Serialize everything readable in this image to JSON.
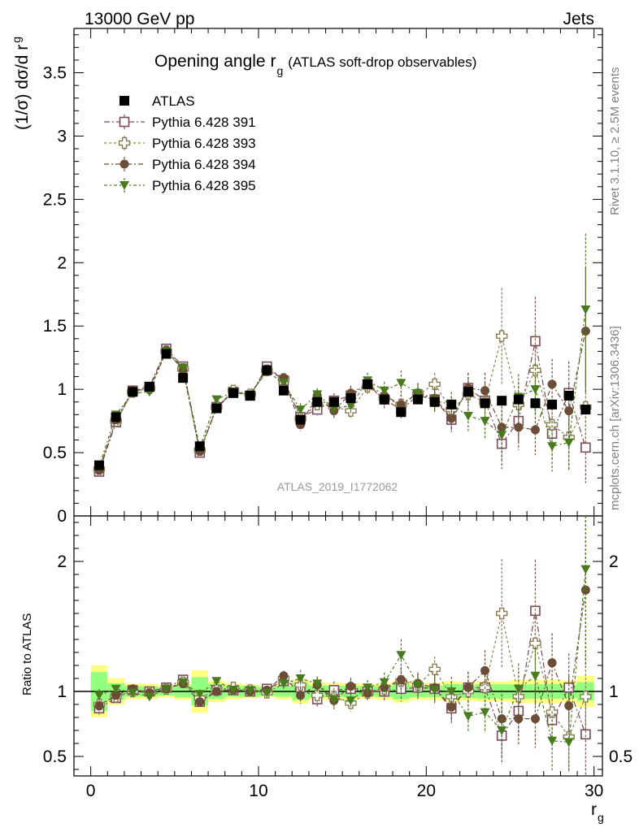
{
  "header": {
    "energy_label": "13000 GeV pp",
    "process_label": "Jets",
    "title_main": "Opening angle r",
    "title_sub": "g",
    "title_suffix": "(ATLAS soft-drop observables)",
    "ylabel_main": "(1/σ) dσ/d r",
    "ylabel_sub": "g",
    "ratio_ylabel": "Ratio to ATLAS",
    "xlabel_main": "r",
    "xlabel_sub": "g",
    "watermark": "ATLAS_2019_I1772062",
    "side_text_top": "Rivet 3.1.10, ≥ 2.5M events",
    "side_text_bottom": "mcplots.cern.ch [arXiv:1306.3436]"
  },
  "chart_data": {
    "type": "scatter",
    "xlim": [
      -1,
      30.5
    ],
    "ylim_main": [
      0,
      3.85
    ],
    "ylim_ratio": [
      0.35,
      2.35
    ],
    "x_ticks": [
      "0",
      "10",
      "20",
      "30"
    ],
    "y_ticks_main": [
      "0",
      "0.5",
      "1",
      "1.5",
      "2",
      "2.5",
      "3",
      "3.5"
    ],
    "y_ticks_ratio": [
      "0.5",
      "1",
      "2"
    ],
    "x": [
      0.5,
      1.5,
      2.5,
      3.5,
      4.5,
      5.5,
      6.5,
      7.5,
      8.5,
      9.5,
      10.5,
      11.5,
      12.5,
      13.5,
      14.5,
      15.5,
      16.5,
      17.5,
      18.5,
      19.5,
      20.5,
      21.5,
      22.5,
      23.5,
      24.5,
      25.5,
      26.5,
      27.5,
      28.5,
      29.5
    ],
    "data": {
      "name": "ATLAS",
      "color": "#000000",
      "values": [
        0.4,
        0.78,
        0.98,
        1.02,
        1.28,
        1.09,
        0.55,
        0.85,
        0.97,
        0.95,
        1.15,
        0.99,
        0.76,
        0.9,
        0.9,
        0.93,
        1.04,
        0.92,
        0.82,
        0.92,
        0.9,
        0.88,
        0.98,
        0.89,
        0.91,
        0.92,
        0.89,
        0.88,
        0.95,
        0.84
      ],
      "band_inner": [
        0.07,
        0.05,
        0.04,
        0.04,
        0.04,
        0.05,
        0.06,
        0.05,
        0.04,
        0.04,
        0.04,
        0.04,
        0.05,
        0.04,
        0.04,
        0.04,
        0.04,
        0.04,
        0.05,
        0.04,
        0.04,
        0.05,
        0.05,
        0.05,
        0.05,
        0.05,
        0.05,
        0.05,
        0.05,
        0.06
      ],
      "band_outer": [
        0.12,
        0.08,
        0.06,
        0.06,
        0.06,
        0.07,
        0.09,
        0.07,
        0.06,
        0.05,
        0.05,
        0.06,
        0.07,
        0.06,
        0.06,
        0.06,
        0.06,
        0.06,
        0.07,
        0.06,
        0.06,
        0.07,
        0.07,
        0.07,
        0.07,
        0.08,
        0.08,
        0.08,
        0.08,
        0.1
      ]
    },
    "series": [
      {
        "name": "Pythia 6.428 391",
        "color": "#7b4a5e",
        "marker": "open-square",
        "values": [
          0.35,
          0.74,
          0.99,
          1.02,
          1.32,
          1.18,
          0.5,
          0.86,
          0.98,
          0.95,
          1.18,
          1.07,
          0.78,
          0.84,
          0.91,
          0.95,
          1.04,
          0.92,
          0.84,
          0.95,
          0.92,
          0.76,
          1.01,
          0.91,
          0.57,
          0.75,
          1.38,
          0.65,
          0.97,
          0.54
        ],
        "errors": [
          0.02,
          0.02,
          0.02,
          0.02,
          0.02,
          0.02,
          0.02,
          0.02,
          0.02,
          0.02,
          0.03,
          0.04,
          0.05,
          0.05,
          0.06,
          0.06,
          0.06,
          0.07,
          0.08,
          0.08,
          0.09,
          0.1,
          0.12,
          0.14,
          0.2,
          0.18,
          0.35,
          0.2,
          0.25,
          0.28
        ],
        "ratio": [
          0.87,
          0.95,
          1.01,
          1.0,
          1.03,
          1.09,
          0.92,
          1.01,
          1.01,
          1.0,
          1.02,
          1.08,
          1.03,
          0.94,
          1.01,
          1.02,
          1.0,
          1.0,
          1.02,
          1.03,
          1.02,
          0.87,
          1.03,
          1.03,
          0.66,
          0.85,
          1.62,
          0.78,
          1.03,
          0.67
        ]
      },
      {
        "name": "Pythia 6.428 393",
        "color": "#8a7d52",
        "marker": "open-cross",
        "values": [
          0.37,
          0.75,
          0.98,
          1.01,
          1.3,
          1.16,
          0.52,
          0.86,
          0.99,
          0.96,
          1.15,
          1.08,
          0.77,
          0.88,
          0.86,
          0.83,
          1.02,
          0.93,
          0.88,
          0.96,
          1.04,
          0.84,
          0.96,
          0.9,
          1.42,
          0.88,
          1.15,
          0.72,
          0.62,
          0.86
        ],
        "errors": [
          0.02,
          0.02,
          0.02,
          0.02,
          0.02,
          0.02,
          0.02,
          0.02,
          0.02,
          0.02,
          0.03,
          0.04,
          0.05,
          0.05,
          0.06,
          0.06,
          0.06,
          0.07,
          0.08,
          0.08,
          0.09,
          0.1,
          0.12,
          0.14,
          0.38,
          0.18,
          0.35,
          0.2,
          0.25,
          0.28
        ],
        "ratio": [
          0.9,
          0.96,
          1.0,
          0.99,
          1.02,
          1.07,
          0.95,
          1.01,
          1.03,
          1.01,
          0.99,
          1.1,
          1.05,
          0.97,
          0.96,
          0.91,
          0.99,
          1.02,
          1.08,
          1.05,
          1.17,
          0.96,
          1.0,
          1.03,
          1.6,
          0.96,
          1.37,
          0.84,
          0.65,
          0.96
        ]
      },
      {
        "name": "Pythia 6.428 394",
        "color": "#6b4c36",
        "marker": "filled-circle",
        "values": [
          0.36,
          0.76,
          0.99,
          1.0,
          1.31,
          1.15,
          0.51,
          0.85,
          0.98,
          0.95,
          1.16,
          1.09,
          0.72,
          0.95,
          0.83,
          0.97,
          1.04,
          0.95,
          0.88,
          0.97,
          0.93,
          0.77,
          1.01,
          0.99,
          0.7,
          0.7,
          0.68,
          1.04,
          0.83,
          1.46
        ],
        "errors": [
          0.02,
          0.02,
          0.02,
          0.02,
          0.02,
          0.02,
          0.02,
          0.02,
          0.02,
          0.02,
          0.03,
          0.04,
          0.05,
          0.05,
          0.06,
          0.06,
          0.06,
          0.07,
          0.08,
          0.08,
          0.09,
          0.1,
          0.12,
          0.14,
          0.2,
          0.18,
          0.2,
          0.2,
          0.22,
          0.5
        ],
        "ratio": [
          0.89,
          0.97,
          1.02,
          0.99,
          1.02,
          1.06,
          0.92,
          1.0,
          1.01,
          1.0,
          1.01,
          1.12,
          0.97,
          1.05,
          0.93,
          1.04,
          0.99,
          1.03,
          1.09,
          1.06,
          1.03,
          0.88,
          1.03,
          1.16,
          0.79,
          0.79,
          0.79,
          1.22,
          0.89,
          1.78
        ]
      },
      {
        "name": "Pythia 6.428 395",
        "color": "#4a7a1e",
        "marker": "filled-triangle-down",
        "values": [
          0.39,
          0.8,
          0.97,
          0.98,
          1.3,
          1.17,
          0.54,
          0.92,
          0.98,
          0.96,
          1.14,
          1.05,
          0.84,
          0.96,
          0.85,
          0.87,
          1.07,
          0.99,
          1.05,
          0.97,
          0.91,
          0.88,
          0.79,
          0.75,
          0.64,
          0.94,
          1.0,
          0.55,
          0.58,
          1.63
        ],
        "errors": [
          0.02,
          0.02,
          0.02,
          0.02,
          0.02,
          0.02,
          0.02,
          0.02,
          0.02,
          0.02,
          0.03,
          0.04,
          0.05,
          0.05,
          0.06,
          0.06,
          0.06,
          0.07,
          0.1,
          0.08,
          0.09,
          0.1,
          0.12,
          0.14,
          0.2,
          0.18,
          0.2,
          0.2,
          0.22,
          0.6
        ],
        "ratio": [
          0.97,
          1.02,
          0.99,
          0.96,
          1.02,
          1.07,
          0.98,
          1.08,
          1.01,
          1.01,
          0.99,
          1.06,
          1.1,
          1.06,
          0.94,
          0.93,
          1.03,
          1.07,
          1.28,
          1.05,
          1.01,
          1.0,
          0.81,
          0.84,
          0.7,
          1.02,
          1.12,
          0.62,
          0.61,
          1.94
        ]
      }
    ]
  }
}
